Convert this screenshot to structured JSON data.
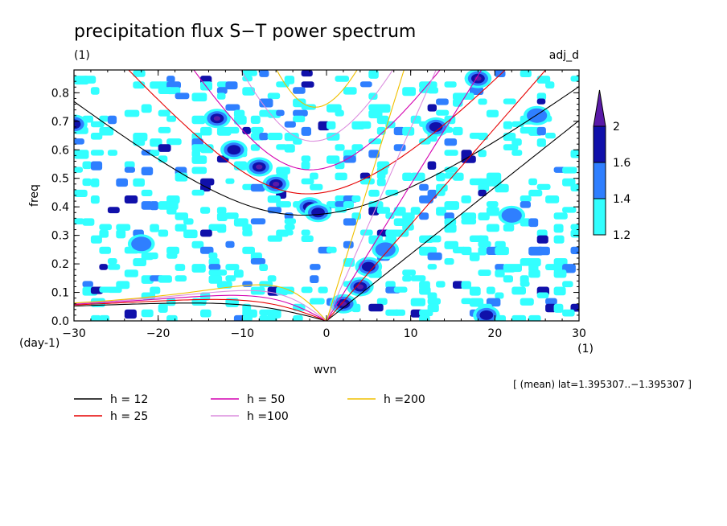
{
  "chart_data": {
    "type": "heatmap",
    "title": "precipitation flux S−T power spectrum",
    "subtitle_left": "(1)",
    "subtitle_right": "adj_d",
    "xlabel": "wvn",
    "ylabel": "freq",
    "x_unit": "(1)",
    "y_unit": "(day-1)",
    "xlim": [
      -30,
      30
    ],
    "ylim": [
      0,
      0.88
    ],
    "x_ticks": [
      -30,
      -20,
      -10,
      0,
      10,
      20,
      30
    ],
    "x_tick_labels": [
      "−30",
      "−20",
      "−10",
      "0",
      "10",
      "20",
      "30"
    ],
    "y_ticks": [
      0.0,
      0.1,
      0.2,
      0.3,
      0.4,
      0.5,
      0.6,
      0.7,
      0.8
    ],
    "y_tick_labels": [
      "0.0",
      "0.1",
      "0.2",
      "0.3",
      "0.4",
      "0.5",
      "0.6",
      "0.7",
      "0.8"
    ],
    "colorbar": {
      "levels": [
        1.2,
        1.4,
        1.6,
        2
      ],
      "level_labels": [
        "1.2",
        "1.4",
        "1.6",
        "2"
      ],
      "colors": [
        "#33ffff",
        "#2f7fff",
        "#1010aa",
        "#5a1aa8"
      ]
    },
    "dispersion_curves": [
      {
        "label": "h = 12",
        "h": 12,
        "color": "#000000"
      },
      {
        "label": "h = 25",
        "h": 25,
        "color": "#e60000"
      },
      {
        "label": "h = 50",
        "h": 50,
        "color": "#d400b0"
      },
      {
        "label": "h =100",
        "h": 100,
        "color": "#dc8ede"
      },
      {
        "label": "h =200",
        "h": 200,
        "color": "#f0c000"
      }
    ],
    "spectral_peaks": [
      {
        "x": -13,
        "y": 0.71,
        "level": 3
      },
      {
        "x": -8,
        "y": 0.54,
        "level": 3
      },
      {
        "x": -6,
        "y": 0.48,
        "level": 3
      },
      {
        "x": -2,
        "y": 0.4,
        "level": 3
      },
      {
        "x": -1,
        "y": 0.38,
        "level": 2
      },
      {
        "x": -11,
        "y": 0.6,
        "level": 2
      },
      {
        "x": 2,
        "y": 0.06,
        "level": 3
      },
      {
        "x": 4,
        "y": 0.12,
        "level": 3
      },
      {
        "x": 5,
        "y": 0.19,
        "level": 2
      },
      {
        "x": 7,
        "y": 0.25,
        "level": 1
      },
      {
        "x": 18,
        "y": 0.85,
        "level": 3
      },
      {
        "x": 19,
        "y": 0.02,
        "level": 2
      },
      {
        "x": -30,
        "y": 0.69,
        "level": 2
      },
      {
        "x": 13,
        "y": 0.68,
        "level": 2
      },
      {
        "x": 25,
        "y": 0.72,
        "level": 1
      },
      {
        "x": 22,
        "y": 0.37,
        "level": 1
      },
      {
        "x": -22,
        "y": 0.27,
        "level": 1
      }
    ],
    "annotation": "[ (mean) lat=1.395307..−1.395307 ]",
    "legend_position": "bottom"
  }
}
